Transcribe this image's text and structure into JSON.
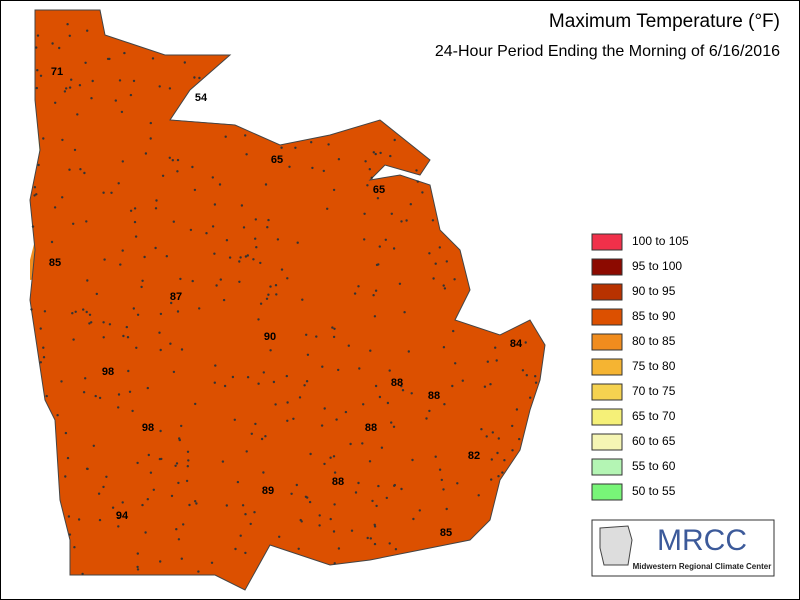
{
  "title": "Maximum Temperature (°F)",
  "subtitle": "24-Hour Period Ending the Morning of 6/16/2016",
  "legend": [
    {
      "label": "100 to 105",
      "color": "#f0304a"
    },
    {
      "label": "95 to 100",
      "color": "#8c0a00"
    },
    {
      "label": "90 to 95",
      "color": "#b83200"
    },
    {
      "label": "85 to 90",
      "color": "#dc5000"
    },
    {
      "label": "80 to 85",
      "color": "#f08c1e"
    },
    {
      "label": "75 to 80",
      "color": "#f5b432"
    },
    {
      "label": "70 to 75",
      "color": "#f5d250"
    },
    {
      "label": "65 to 70",
      "color": "#f5f078"
    },
    {
      "label": "60 to 65",
      "color": "#f5f5b4"
    },
    {
      "label": "55 to 60",
      "color": "#b4f5b4"
    },
    {
      "label": "50 to 55",
      "color": "#78f578"
    }
  ],
  "map_labels": [
    "71",
    "54",
    "65",
    "65",
    "85",
    "87",
    "90",
    "84",
    "98",
    "88",
    "88",
    "98",
    "88",
    "82",
    "88",
    "89",
    "94",
    "85"
  ],
  "logo": {
    "acronym": "MRCC",
    "name": "Midwestern Regional Climate Center"
  }
}
